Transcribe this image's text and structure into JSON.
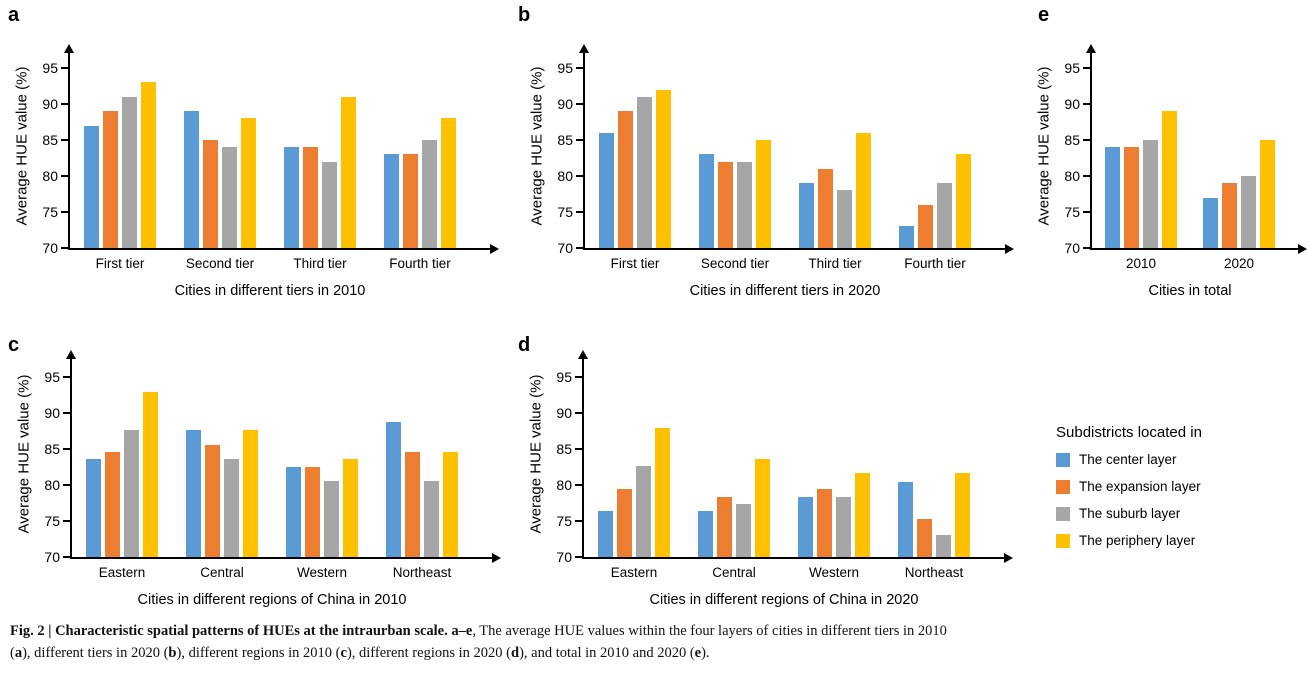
{
  "colors": {
    "center": "#5B9BD5",
    "expansion": "#ED7D31",
    "suburb": "#A6A6A6",
    "periphery": "#FFC000",
    "axis": "#000000"
  },
  "legend": {
    "title": "Subdistricts located in",
    "items": [
      {
        "key": "center-layer",
        "label": "The center layer",
        "color": "#5B9BD5"
      },
      {
        "key": "expansion-layer",
        "label": "The expansion layer",
        "color": "#ED7D31"
      },
      {
        "key": "suburb-layer",
        "label": "The suburb layer",
        "color": "#A6A6A6"
      },
      {
        "key": "periphery-layer",
        "label": "The periphery layer",
        "color": "#FFC000"
      }
    ]
  },
  "chart_data": [
    {
      "panel_label": "a",
      "type": "bar",
      "xlabel": "Cities in different tiers in 2010",
      "ylabel": "Average HUE value (%)",
      "ylim": [
        70,
        98
      ],
      "yticks": [
        70,
        75,
        80,
        85,
        90,
        95
      ],
      "grid": false,
      "categories": [
        "First tier",
        "Second tier",
        "Third tier",
        "Fourth tier"
      ],
      "series": [
        {
          "key": "center-layer",
          "name": "The center layer",
          "color": "#5B9BD5",
          "values": [
            87,
            89,
            84,
            83
          ]
        },
        {
          "key": "expansion-layer",
          "name": "The expansion layer",
          "color": "#ED7D31",
          "values": [
            89,
            85,
            84,
            83
          ]
        },
        {
          "key": "suburb-layer",
          "name": "The suburb layer",
          "color": "#A6A6A6",
          "values": [
            91,
            84,
            82,
            85
          ]
        },
        {
          "key": "periphery-layer",
          "name": "The periphery layer",
          "color": "#FFC000",
          "values": [
            93,
            88,
            91,
            88
          ]
        }
      ]
    },
    {
      "panel_label": "b",
      "type": "bar",
      "xlabel": "Cities in different tiers in 2020",
      "ylabel": "Average HUE value (%)",
      "ylim": [
        70,
        98
      ],
      "yticks": [
        70,
        75,
        80,
        85,
        90,
        95
      ],
      "grid": false,
      "categories": [
        "First tier",
        "Second tier",
        "Third tier",
        "Fourth tier"
      ],
      "series": [
        {
          "key": "center-layer",
          "name": "The center layer",
          "color": "#5B9BD5",
          "values": [
            86,
            83,
            79,
            73
          ]
        },
        {
          "key": "expansion-layer",
          "name": "The expansion layer",
          "color": "#ED7D31",
          "values": [
            89,
            82,
            81,
            76
          ]
        },
        {
          "key": "suburb-layer",
          "name": "The suburb layer",
          "color": "#A6A6A6",
          "values": [
            91,
            82,
            78,
            79
          ]
        },
        {
          "key": "periphery-layer",
          "name": "The periphery layer",
          "color": "#FFC000",
          "values": [
            92,
            85,
            86,
            83
          ]
        }
      ]
    },
    {
      "panel_label": "c",
      "type": "bar",
      "xlabel": "Cities in different regions of China in 2010",
      "ylabel": "Average HUE value (%)",
      "ylim": [
        70,
        98
      ],
      "yticks": [
        70,
        75,
        80,
        85,
        90,
        95
      ],
      "grid": false,
      "categories": [
        "Eastern",
        "Central",
        "Western",
        "Northeast"
      ],
      "series": [
        {
          "key": "center-layer",
          "name": "The center layer",
          "color": "#5B9BD5",
          "values": [
            83.6,
            87.7,
            82.5,
            88.8
          ]
        },
        {
          "key": "expansion-layer",
          "name": "The expansion layer",
          "color": "#ED7D31",
          "values": [
            84.6,
            85.6,
            82.5,
            84.6
          ]
        },
        {
          "key": "suburb-layer",
          "name": "The suburb layer",
          "color": "#A6A6A6",
          "values": [
            87.7,
            83.6,
            80.5,
            80.5
          ]
        },
        {
          "key": "periphery-layer",
          "name": "The periphery layer",
          "color": "#FFC000",
          "values": [
            92.9,
            87.7,
            83.6,
            84.6
          ]
        }
      ]
    },
    {
      "panel_label": "d",
      "type": "bar",
      "xlabel": "Cities in different regions of China in 2020",
      "ylabel": "Average HUE value (%)",
      "ylim": [
        70,
        98
      ],
      "yticks": [
        70,
        75,
        80,
        85,
        90,
        95
      ],
      "grid": false,
      "categories": [
        "Eastern",
        "Central",
        "Western",
        "Northeast"
      ],
      "series": [
        {
          "key": "center-layer",
          "name": "The center layer",
          "color": "#5B9BD5",
          "values": [
            76.4,
            76.4,
            78.4,
            80.4
          ]
        },
        {
          "key": "expansion-layer",
          "name": "The expansion layer",
          "color": "#ED7D31",
          "values": [
            79.5,
            78.4,
            79.5,
            75.3
          ]
        },
        {
          "key": "suburb-layer",
          "name": "The suburb layer",
          "color": "#A6A6A6",
          "values": [
            82.7,
            77.4,
            78.4,
            73.1
          ]
        },
        {
          "key": "periphery-layer",
          "name": "The periphery layer",
          "color": "#FFC000",
          "values": [
            87.9,
            83.6,
            81.6,
            81.6
          ]
        }
      ]
    },
    {
      "panel_label": "e",
      "type": "bar",
      "xlabel": "Cities in total",
      "ylabel": "Average HUE value (%)",
      "ylim": [
        70,
        98
      ],
      "yticks": [
        70,
        75,
        80,
        85,
        90,
        95
      ],
      "grid": false,
      "categories": [
        "2010",
        "2020"
      ],
      "series": [
        {
          "key": "center-layer",
          "name": "The center layer",
          "color": "#5B9BD5",
          "values": [
            84,
            77
          ]
        },
        {
          "key": "expansion-layer",
          "name": "The expansion layer",
          "color": "#ED7D31",
          "values": [
            84,
            79
          ]
        },
        {
          "key": "suburb-layer",
          "name": "The suburb layer",
          "color": "#A6A6A6",
          "values": [
            85,
            80
          ]
        },
        {
          "key": "periphery-layer",
          "name": "The periphery layer",
          "color": "#FFC000",
          "values": [
            89,
            85
          ]
        }
      ]
    }
  ],
  "caption": {
    "lines": [
      [
        {
          "text": "Fig. 2 | Characteristic spatial patterns of HUEs at the intraurban scale. a–e",
          "bold": true
        },
        {
          "text": ", The average HUE values within the four layers of cities in different tiers in 2010",
          "bold": false
        }
      ],
      [
        {
          "text": "(",
          "bold": false
        },
        {
          "text": "a",
          "bold": true
        },
        {
          "text": "), different tiers in 2020 (",
          "bold": false
        },
        {
          "text": "b",
          "bold": true
        },
        {
          "text": "), different regions in 2010 (",
          "bold": false
        },
        {
          "text": "c",
          "bold": true
        },
        {
          "text": "), different regions in 2020 (",
          "bold": false
        },
        {
          "text": "d",
          "bold": true
        },
        {
          "text": "), and total in 2010 and 2020 (",
          "bold": false
        },
        {
          "text": "e",
          "bold": true
        },
        {
          "text": ").",
          "bold": false
        }
      ]
    ]
  }
}
